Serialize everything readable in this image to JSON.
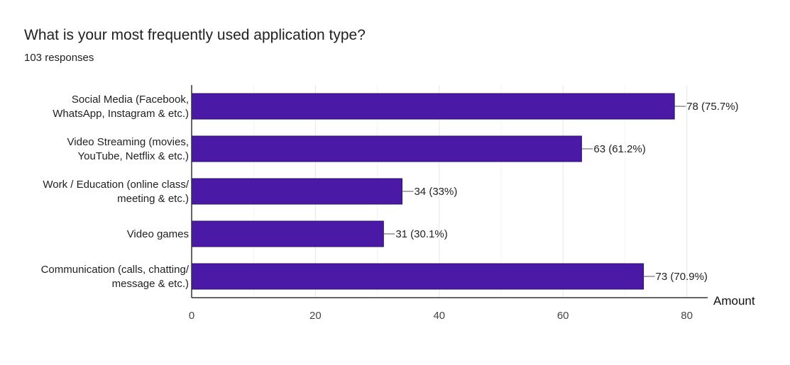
{
  "header": {
    "title": "What is your most frequently used application type?",
    "subtitle": "103 responses"
  },
  "chart_data": {
    "type": "bar",
    "orientation": "horizontal",
    "title": "What is your most frequently used application type?",
    "subtitle": "103 responses",
    "categories": [
      [
        "Social Media (Facebook,",
        "WhatsApp, Instagram & etc.)"
      ],
      [
        "Video Streaming (movies,",
        "YouTube, Netflix & etc.)"
      ],
      [
        "Work / Education (online class/",
        "meeting & etc.)"
      ],
      [
        "Video games"
      ],
      [
        "Communication (calls, chatting/",
        "message & etc.)"
      ]
    ],
    "values": [
      78,
      63,
      34,
      31,
      73
    ],
    "data_labels": [
      "78 (75.7%)",
      "63 (61.2%)",
      "34 (33%)",
      "31 (30.1%)",
      "73 (70.9%)"
    ],
    "xlabel": "Amount",
    "ylabel": "",
    "xlim": [
      0,
      85
    ],
    "xticks": [
      0,
      20,
      40,
      60,
      80
    ],
    "xtick_labels": [
      "0",
      "20",
      "40",
      "60",
      "80"
    ],
    "grid": true,
    "bar_color": "#4a1aa6",
    "bar_border_color": "#2b0f6b"
  }
}
